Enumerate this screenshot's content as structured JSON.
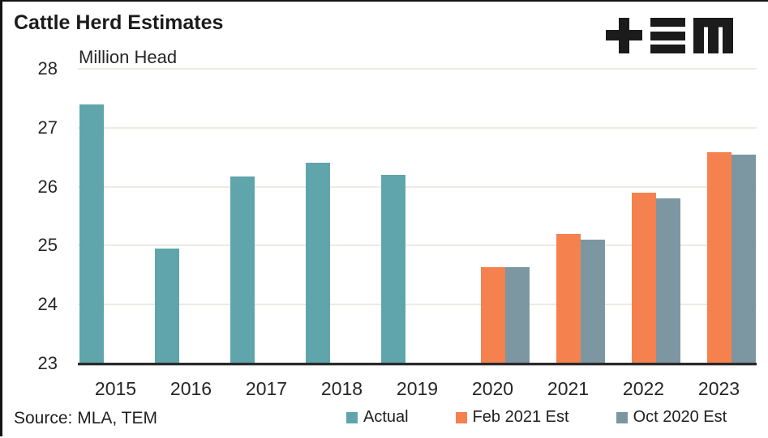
{
  "window": {
    "border_color": "#141414",
    "background": "#ffffff"
  },
  "header": {
    "title": "Cattle Herd Estimates",
    "logo": {
      "name": "TEM",
      "color": "#1b1b1b",
      "glyphs": [
        "plus-icon",
        "triple-bar-icon",
        "m-glyph-icon"
      ]
    }
  },
  "footer": {
    "source": "Source: MLA, TEM"
  },
  "chart_data": {
    "type": "bar",
    "title": "Cattle Herd Estimates",
    "unit_label": "Million Head",
    "categories": [
      "2015",
      "2016",
      "2017",
      "2018",
      "2019",
      "2020",
      "2021",
      "2022",
      "2023"
    ],
    "series": [
      {
        "name": "Actual",
        "color": "#5FA5AB",
        "values": [
          27.4,
          24.95,
          26.17,
          26.4,
          26.2,
          null,
          null,
          null,
          null
        ]
      },
      {
        "name": "Feb 2021 Est",
        "color": "#F5814E",
        "values": [
          null,
          null,
          null,
          null,
          null,
          24.63,
          25.2,
          25.9,
          26.58
        ]
      },
      {
        "name": "Oct 2020 Est",
        "color": "#7D97A2",
        "values": [
          null,
          null,
          null,
          null,
          null,
          24.63,
          25.1,
          25.8,
          26.55
        ]
      }
    ],
    "ylim": [
      23,
      28
    ],
    "yticks": [
      23,
      24,
      25,
      26,
      27,
      28
    ],
    "grid": true,
    "gridline_color": "#EDEBE2",
    "axis_color": "#2a2a2a",
    "legend_position": "bottom",
    "source": "Source: MLA, TEM"
  }
}
